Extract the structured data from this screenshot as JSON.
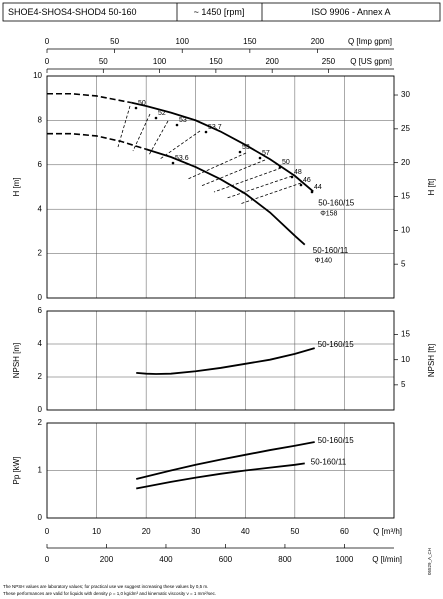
{
  "header": {
    "model": "SHOE4-SHOS4-SHOD4 50-160",
    "speed": "~ 1450 [rpm]",
    "standard": "ISO 9906 - Annex A"
  },
  "chart_data": [
    {
      "type": "line",
      "ylabel": "H [m]",
      "y2label": "H [ft]",
      "xlim": [
        0,
        70
      ],
      "xticks": [
        0,
        10,
        20,
        30,
        40,
        50,
        60
      ],
      "ylim": [
        0,
        10
      ],
      "yticks": [
        0,
        2,
        4,
        6,
        8,
        10
      ],
      "y2lim": [
        0,
        32.81
      ],
      "y2ticks": [
        5,
        10,
        15,
        20,
        25,
        30
      ],
      "grid": true,
      "top_axes": [
        {
          "label": "Q [Imp gpm]",
          "xlim": [
            0,
            256.6
          ],
          "xticks": [
            0,
            50,
            100,
            150,
            200
          ]
        },
        {
          "label": "Q [US gpm]",
          "xlim": [
            0,
            308.2
          ],
          "xticks": [
            0,
            50,
            100,
            150,
            200,
            250
          ]
        }
      ],
      "series": [
        {
          "name": "50-160/15",
          "diameter": "Φ158",
          "color": "#000000",
          "solid_from": 17,
          "x": [
            0,
            5,
            10,
            17,
            20,
            25,
            30,
            35,
            40,
            45,
            50,
            53.7
          ],
          "values": [
            9.2,
            9.2,
            9.1,
            8.8,
            8.65,
            8.35,
            8.0,
            7.5,
            6.9,
            6.25,
            5.5,
            4.8
          ]
        },
        {
          "name": "50-160/11",
          "diameter": "Φ140",
          "color": "#000000",
          "solid_from": 20,
          "x": [
            0,
            5,
            10,
            15,
            20,
            25,
            30,
            35,
            40,
            45,
            50,
            52
          ],
          "values": [
            7.4,
            7.4,
            7.3,
            7.05,
            6.7,
            6.35,
            5.9,
            5.35,
            4.7,
            3.85,
            2.8,
            2.4
          ]
        }
      ],
      "efficiency_labels": [
        50,
        52,
        53,
        53.7,
        53,
        57,
        50,
        48,
        46,
        44,
        53.6
      ]
    },
    {
      "type": "line",
      "ylabel": "NPSH [m]",
      "y2label": "NPSH [ft]",
      "xlim": [
        0,
        70
      ],
      "xticks": [
        0,
        10,
        20,
        30,
        40,
        50,
        60
      ],
      "ylim": [
        0,
        6
      ],
      "yticks": [
        0,
        2,
        4,
        6
      ],
      "y2lim": [
        0,
        19.69
      ],
      "y2ticks": [
        5,
        10,
        15
      ],
      "grid": true,
      "series": [
        {
          "name": "50-160/15",
          "color": "#000000",
          "x": [
            18,
            20,
            22,
            25,
            30,
            35,
            40,
            45,
            50,
            54
          ],
          "values": [
            2.25,
            2.2,
            2.18,
            2.2,
            2.35,
            2.55,
            2.8,
            3.05,
            3.4,
            3.75
          ]
        }
      ]
    },
    {
      "type": "line",
      "ylabel": "Pp [kW]",
      "xlabel": "Q [m³/h]",
      "xlim": [
        0,
        70
      ],
      "xticks": [
        0,
        10,
        20,
        30,
        40,
        50,
        60
      ],
      "ylim": [
        0,
        2
      ],
      "yticks": [
        0,
        1,
        2
      ],
      "grid": true,
      "bottom_axis": {
        "label": "Q [l/min]",
        "xlim": [
          0,
          1166.7
        ],
        "xticks": [
          0,
          200,
          400,
          600,
          800,
          1000
        ]
      },
      "series": [
        {
          "name": "50-160/15",
          "color": "#000000",
          "x": [
            18,
            25,
            30,
            35,
            40,
            45,
            50,
            54
          ],
          "values": [
            0.82,
            1.0,
            1.12,
            1.23,
            1.33,
            1.43,
            1.52,
            1.6
          ]
        },
        {
          "name": "50-160/11",
          "color": "#000000",
          "x": [
            18,
            25,
            30,
            35,
            40,
            45,
            50,
            52
          ],
          "values": [
            0.62,
            0.76,
            0.85,
            0.93,
            1.0,
            1.06,
            1.12,
            1.15
          ]
        }
      ]
    }
  ],
  "notes": [
    "The NPSH values are laboratory values; for practical use we suggest increasing these values by 0,5 m.",
    "These performances are valid for liquids with density ρ = 1,0 kg/dm³ and kinematic viscosity ν = 1 mm²/sec."
  ],
  "drawing_code": "05529_A_CH"
}
